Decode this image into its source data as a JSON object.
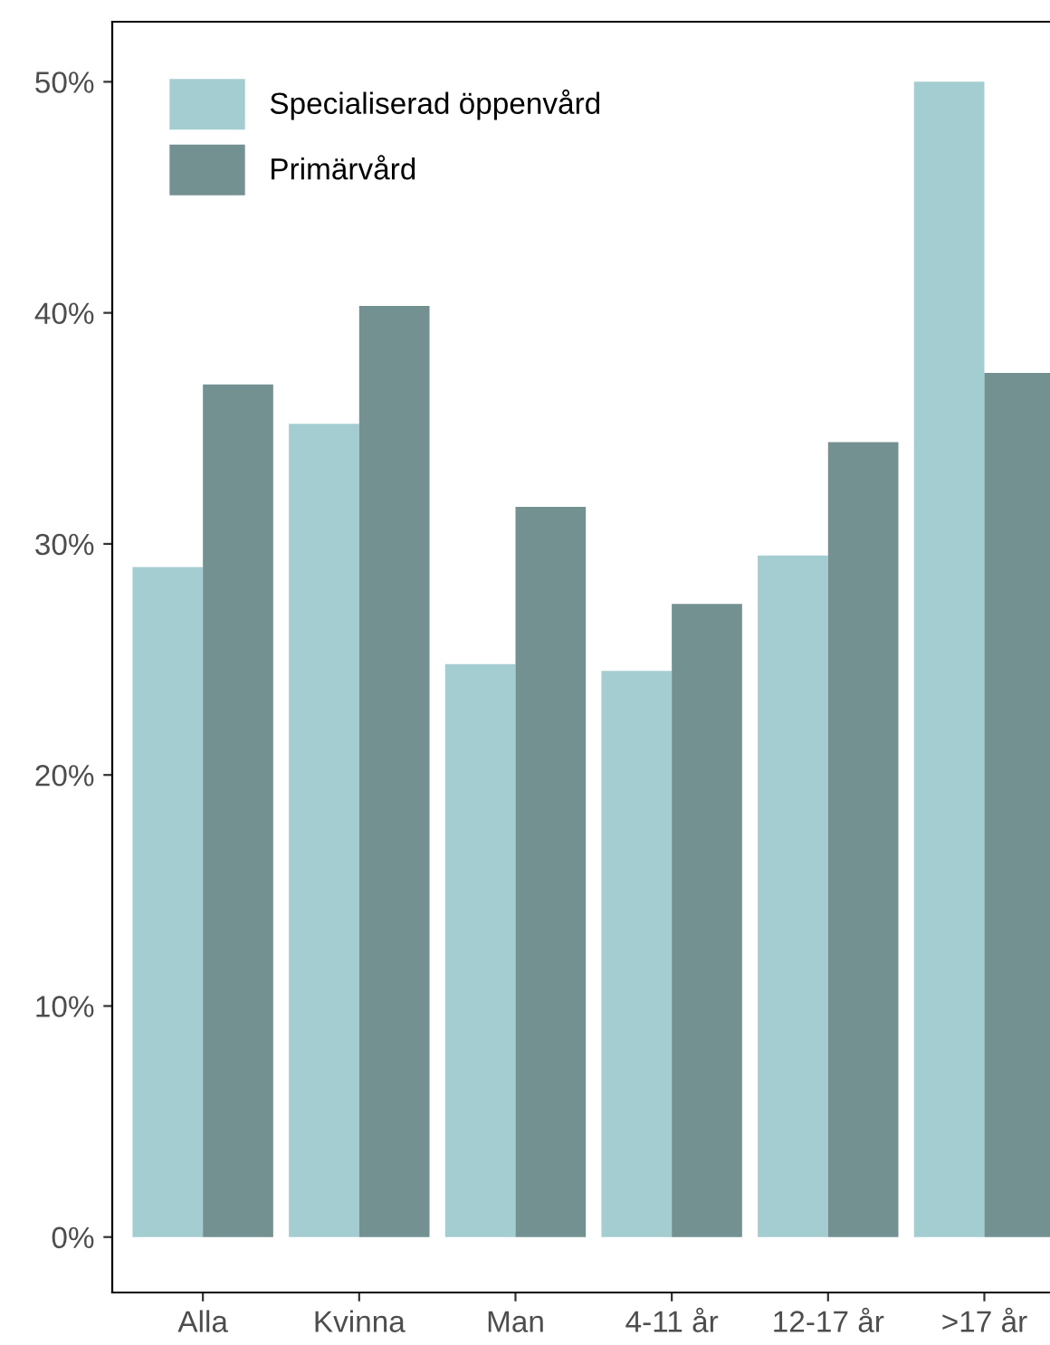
{
  "chart_data": {
    "type": "bar",
    "categories": [
      "Alla",
      "Kvinna",
      "Man",
      "4-11 år",
      "12-17 år",
      ">17 år"
    ],
    "series": [
      {
        "name": "Specialiserad öppenvård",
        "color": "#a3cdd1",
        "values": [
          29.0,
          35.2,
          24.8,
          24.5,
          29.5,
          50.0
        ]
      },
      {
        "name": "Primärvård",
        "color": "#739191",
        "values": [
          36.9,
          40.3,
          31.6,
          27.4,
          34.4,
          37.4
        ]
      }
    ],
    "ylim": [
      -2.4,
      52.6
    ],
    "yticks": [
      {
        "value": 0,
        "label": "0%"
      },
      {
        "value": 10,
        "label": "10%"
      },
      {
        "value": 20,
        "label": "20%"
      },
      {
        "value": 30,
        "label": "30%"
      },
      {
        "value": 40,
        "label": "40%"
      },
      {
        "value": 50,
        "label": "50%"
      }
    ],
    "grid": false,
    "legend": "top left"
  }
}
